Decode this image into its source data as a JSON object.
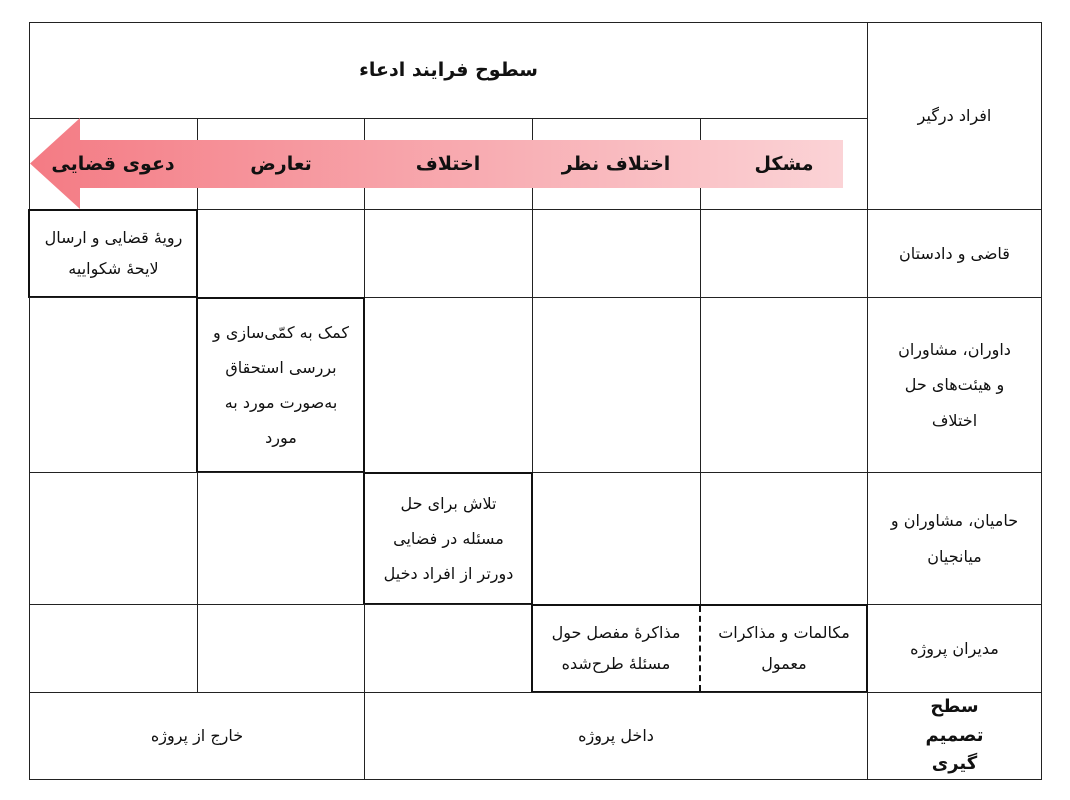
{
  "header": {
    "title": "سطوح فرایند ادعاء",
    "involved_label": "افراد درگیر"
  },
  "stages": [
    "مشکل",
    "اختلاف نظر",
    "اختلاف",
    "تعارض",
    "دعوی قضایی"
  ],
  "arrow_colors": {
    "start": "#fbd3d6",
    "end": "#f47b84"
  },
  "rows": [
    {
      "label": "قاضی و دادستان",
      "activity": "رویهٔ قضایی و ارسال لایحهٔ شکواییه"
    },
    {
      "label": "داوران، مشاوران و هیئت‌های حل اختلاف",
      "activity": "کمک به کمّی‌سازی و بررسی استحقاق به‌صورت مورد به مورد"
    },
    {
      "label": "حامیان، مشاوران و میانجیان",
      "activity": "تلاش برای حل مسئله در فضایی دورتر از افراد دخیل"
    },
    {
      "label": "مدیران پروژه",
      "activity": "مکالمات و مذاکرات معمول",
      "activity2": "مذاکرهٔ مفصل حول مسئلهٔ طرح‌شده"
    }
  ],
  "footer": {
    "label": "سطح تصمیم گیری",
    "inside": "داخل پروژه",
    "outside": "خارج از پروژه"
  }
}
